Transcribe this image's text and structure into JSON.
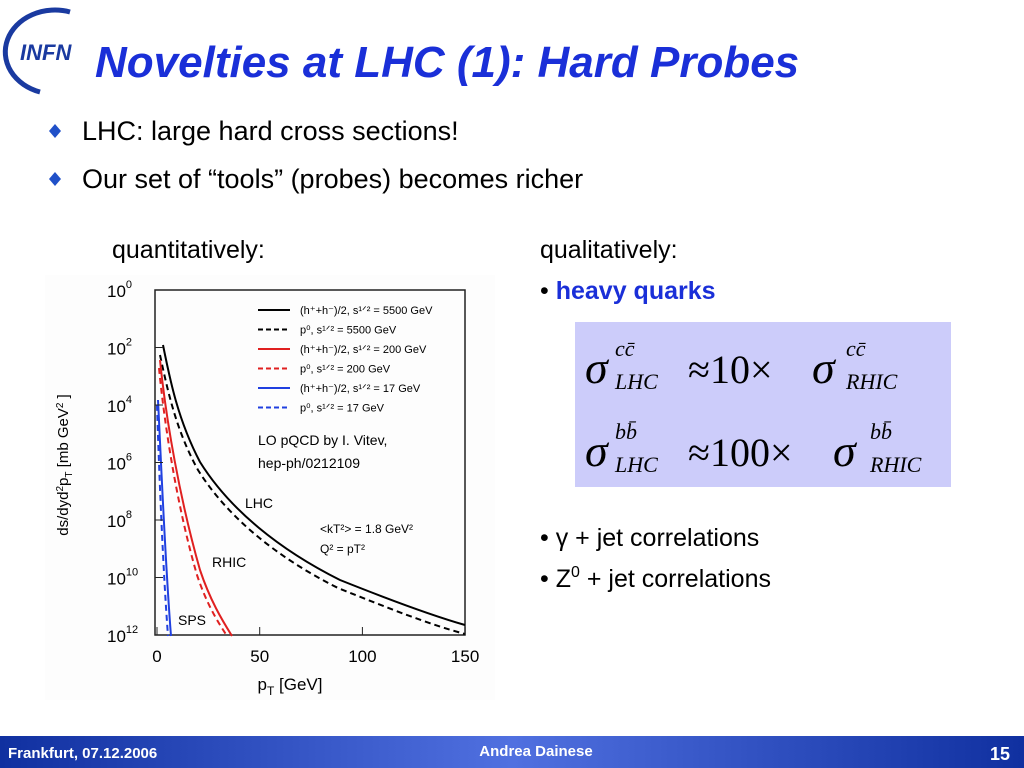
{
  "header": {
    "logo": "INFN",
    "title": "Novelties at LHC (1): Hard Probes"
  },
  "bullets": [
    "LHC: large hard cross sections!",
    "Our set of “tools” (probes) becomes richer"
  ],
  "left": {
    "heading": "quantitatively:"
  },
  "figure": {
    "yticks": [
      {
        "base": "10",
        "exp": "0"
      },
      {
        "base": "10",
        "exp": "2"
      },
      {
        "base": "10",
        "exp": "4"
      },
      {
        "base": "10",
        "exp": "6"
      },
      {
        "base": "10",
        "exp": "8"
      },
      {
        "base": "10",
        "exp": "10"
      },
      {
        "base": "10",
        "exp": "12"
      }
    ],
    "xticks": [
      0,
      50,
      100,
      150
    ],
    "xlabel": {
      "main": "p",
      "sub": "T",
      "rest": " [GeV]"
    },
    "ylabel": {
      "a": "ds/dyd",
      "b": "2",
      "c": "p",
      "d": "T",
      "e": " [mb GeV",
      "f": "2",
      "g": " ]"
    },
    "legend": [
      {
        "label": "(h⁺+h⁻)/2, s¹ᐟ² = 5500 GeV",
        "color": "#000000",
        "dashed": false
      },
      {
        "label": "p⁰, s¹ᐟ² = 5500 GeV",
        "color": "#000000",
        "dashed": true
      },
      {
        "label": "(h⁺+h⁻)/2, s¹ᐟ² = 200 GeV",
        "color": "#e02020",
        "dashed": false
      },
      {
        "label": "p⁰, s¹ᐟ² = 200 GeV",
        "color": "#e02020",
        "dashed": true
      },
      {
        "label": "(h⁺+h⁻)/2, s¹ᐟ² = 17 GeV",
        "color": "#2040e0",
        "dashed": false
      },
      {
        "label": "p⁰, s¹ᐟ² = 17 GeV",
        "color": "#2040e0",
        "dashed": true
      }
    ],
    "note": [
      "LO pQCD by I. Vitev,",
      "hep-ph/0212109"
    ],
    "curve_labels": [
      "LHC",
      "RHIC",
      "SPS"
    ],
    "params": [
      "<kT²> = 1.8 GeV²",
      "Q² = pT²"
    ]
  },
  "right": {
    "heading": "qualitatively:",
    "marker": "•",
    "highlight": "heavy quarks",
    "formulas": [
      {
        "sigma": "σ",
        "sup": "cc̄",
        "sub": "LHC",
        "op": "≈10×",
        "sigma2": "σ",
        "sup2": "cc̄",
        "sub2": "RHIC"
      },
      {
        "sigma": "σ",
        "sup": "bb̄",
        "sub": "LHC",
        "op": "≈100×",
        "sigma2": "σ",
        "sup2": "bb̄",
        "sub2": "RHIC"
      }
    ],
    "items": [
      {
        "marker": "•",
        "text": "γ + jet correlations"
      },
      {
        "marker": "•",
        "base": "Z",
        "sup": "0",
        "text": " + jet correlations"
      }
    ]
  },
  "footer": {
    "left": "Frankfurt, 07.12.2006",
    "center": "Andrea Dainese",
    "page": "15"
  }
}
